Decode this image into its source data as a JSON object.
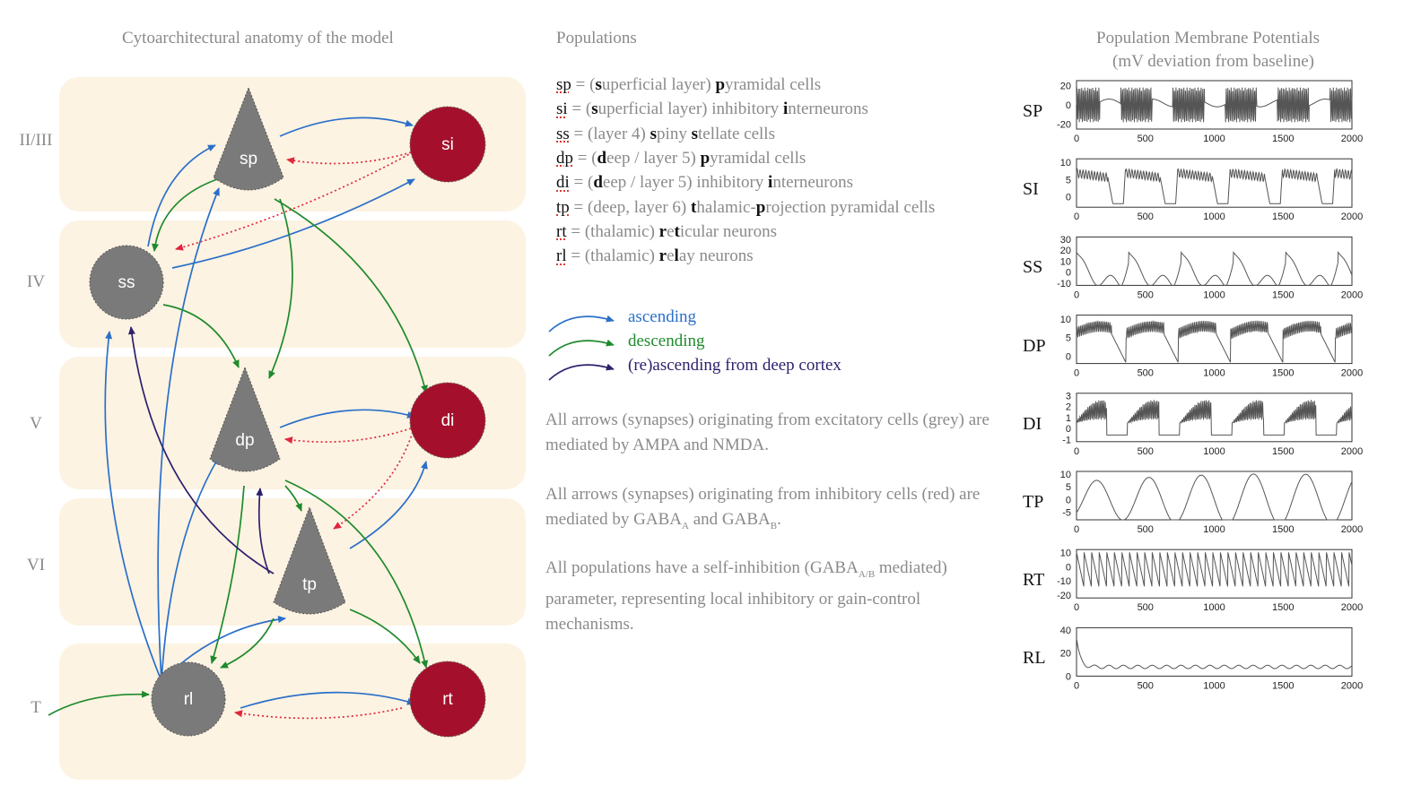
{
  "diagram": {
    "title": "Cytoarchitectural anatomy of the model",
    "layers": [
      "II/III",
      "IV",
      "V",
      "VI",
      "T"
    ],
    "nodes": {
      "sp": "sp",
      "si": "si",
      "ss": "ss",
      "dp": "dp",
      "di": "di",
      "tp": "tp",
      "rl": "rl",
      "rt": "rt"
    },
    "colors": {
      "excitatory": "#7a7a7a",
      "inhibitory": "#a4102c",
      "band": "#fdf3e2",
      "ascending": "#2a6fc9",
      "descending": "#1e8a2c",
      "reascending": "#2e1f6e",
      "inhibitory_arrow": "#e0263d"
    }
  },
  "populations": {
    "title": "Populations",
    "items": [
      {
        "abbr": "sp",
        "pre": " = (",
        "b1": "s",
        "mid1": "uperficial layer) ",
        "b2": "p",
        "rest": "yramidal cells"
      },
      {
        "abbr": "si",
        "pre": " = (",
        "b1": "s",
        "mid1": "uperficial layer) inhibitory ",
        "b2": "i",
        "rest": "nterneurons"
      },
      {
        "abbr": "ss",
        "pre": " = (layer 4) ",
        "b1": "s",
        "mid1": "piny ",
        "b2": "s",
        "rest": "tellate cells"
      },
      {
        "abbr": "dp",
        "pre": " = (",
        "b1": "d",
        "mid1": "eep / layer 5) ",
        "b2": "p",
        "rest": "yramidal cells"
      },
      {
        "abbr": "di",
        "pre": " = (",
        "b1": "d",
        "mid1": "eep / layer 5) inhibitory ",
        "b2": "i",
        "rest": "nterneurons"
      },
      {
        "abbr": "tp",
        "pre": " = (deep, layer 6) ",
        "b1": "t",
        "mid1": "halamic-",
        "b2": "p",
        "rest": "rojection pyramidal cells"
      },
      {
        "abbr": "rt",
        "pre": " = (thalamic) ",
        "b1": "r",
        "mid1": "e",
        "b2": "t",
        "rest": "icular neurons"
      },
      {
        "abbr": "rl",
        "pre": " = (thalamic) ",
        "b1": "r",
        "mid1": "e",
        "b2": "l",
        "rest": "ay neurons"
      }
    ]
  },
  "legend": {
    "ascending": "ascending",
    "descending": "descending",
    "reascending": "(re)ascending from deep cortex"
  },
  "notes": {
    "excitatory": "All arrows (synapses) originating from excitatory cells (grey) are mediated by AMPA and NMDA.",
    "inhibitory_a": "All arrows (synapses) originating from inhibitory cells (red) are mediated by GABA",
    "inhibitory_sub1": "A",
    "inhibitory_b": " and GABA",
    "inhibitory_sub2": "B",
    "inhibitory_c": ".",
    "self_a": "All populations have a self-inhibition (GABA",
    "self_sub": "A/B",
    "self_b": " mediated) parameter, representing local inhibitory or gain-control mechanisms."
  },
  "membrane": {
    "title_line1": "Population Membrane Potentials",
    "title_line2": "(mV deviation from baseline)",
    "x_ticks": [
      "0",
      "500",
      "1000",
      "1500",
      "2000"
    ]
  },
  "chart_data": [
    {
      "type": "line",
      "name": "SP",
      "label": "SP",
      "xlim": [
        0,
        2000
      ],
      "ylim": [
        -25,
        25
      ],
      "yticks": [
        "20",
        "0",
        "-20"
      ],
      "kind": "sp"
    },
    {
      "type": "line",
      "name": "SI",
      "label": "SI",
      "xlim": [
        0,
        2000
      ],
      "ylim": [
        -3,
        11
      ],
      "yticks": [
        "10",
        "5",
        "0"
      ],
      "kind": "si"
    },
    {
      "type": "line",
      "name": "SS",
      "label": "SS",
      "xlim": [
        0,
        2000
      ],
      "ylim": [
        -12,
        32
      ],
      "yticks": [
        "30",
        "20",
        "10",
        "0",
        "-10"
      ],
      "kind": "ss"
    },
    {
      "type": "line",
      "name": "DP",
      "label": "DP",
      "xlim": [
        0,
        2000
      ],
      "ylim": [
        -2,
        11
      ],
      "yticks": [
        "10",
        "5",
        "0"
      ],
      "kind": "dp"
    },
    {
      "type": "line",
      "name": "DI",
      "label": "DI",
      "xlim": [
        0,
        2000
      ],
      "ylim": [
        -1.2,
        3.2
      ],
      "yticks": [
        "3",
        "2",
        "1",
        "0",
        "-1"
      ],
      "kind": "di"
    },
    {
      "type": "line",
      "name": "TP",
      "label": "TP",
      "xlim": [
        0,
        2000
      ],
      "ylim": [
        -8,
        11
      ],
      "yticks": [
        "10",
        "5",
        "0",
        "-5"
      ],
      "kind": "tp"
    },
    {
      "type": "line",
      "name": "RT",
      "label": "RT",
      "xlim": [
        0,
        2000
      ],
      "ylim": [
        -22,
        12
      ],
      "yticks": [
        "10",
        "0",
        "-10",
        "-20"
      ],
      "kind": "rt"
    },
    {
      "type": "line",
      "name": "RL",
      "label": "RL",
      "xlim": [
        0,
        2000
      ],
      "ylim": [
        0,
        42
      ],
      "yticks": [
        "40",
        "20",
        "0"
      ],
      "kind": "rl"
    }
  ]
}
